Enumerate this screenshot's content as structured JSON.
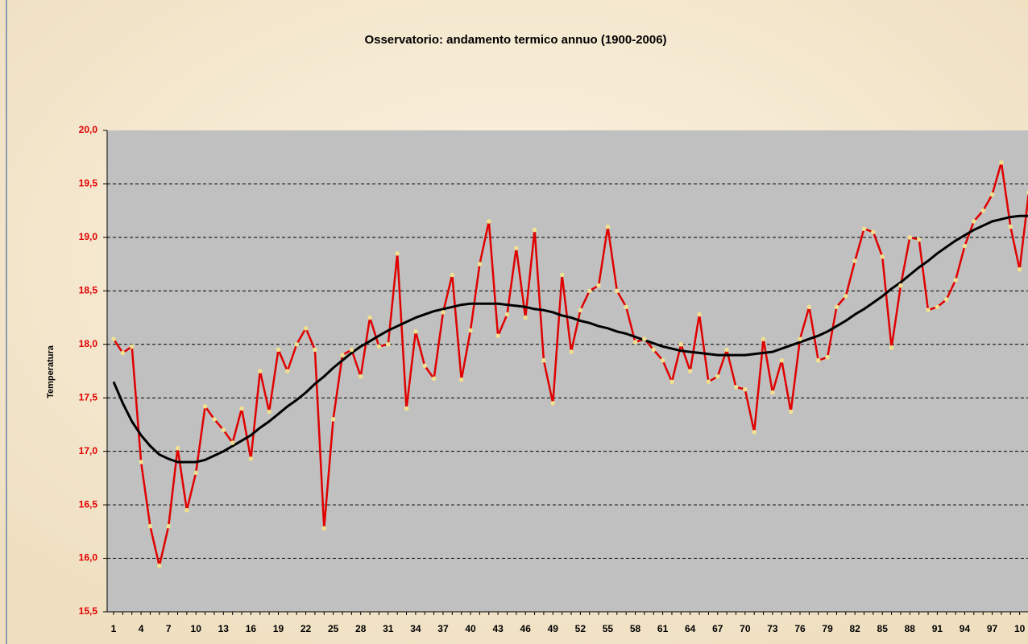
{
  "chart_data": {
    "type": "line",
    "title": "Osservatorio: andamento termico annuo (1900-2006)",
    "ylabel": "Temperatura",
    "categories": [
      "1",
      null,
      null,
      "4",
      null,
      null,
      "7",
      null,
      null,
      "10",
      null,
      null,
      "13",
      null,
      null,
      "16",
      null,
      null,
      "19",
      null,
      null,
      "22",
      null,
      null,
      "25",
      null,
      null,
      "28",
      null,
      null,
      "31",
      null,
      null,
      "34",
      null,
      null,
      "37",
      null,
      null,
      "40",
      null,
      null,
      "43",
      null,
      null,
      "46",
      null,
      null,
      "49",
      null,
      null,
      "52",
      null,
      null,
      "55",
      null,
      null,
      "58",
      null,
      null,
      "61",
      null,
      null,
      "64",
      null,
      null,
      "67",
      null,
      null,
      "70",
      null,
      null,
      "73",
      null,
      null,
      "76",
      null,
      null,
      "79",
      null,
      null,
      "82",
      null,
      null,
      "85",
      null,
      null,
      "88",
      null,
      null,
      "91",
      null,
      null,
      "94",
      null,
      null,
      "97",
      null,
      null,
      "10",
      null
    ],
    "series": [
      {
        "color": "#e00000",
        "marker_color": "#f0e090",
        "values": [
          18.05,
          17.92,
          17.98,
          16.9,
          16.3,
          15.93,
          16.3,
          17.03,
          16.45,
          16.8,
          17.42,
          17.3,
          17.2,
          17.08,
          17.4,
          16.93,
          17.75,
          17.37,
          17.95,
          17.75,
          18.0,
          18.15,
          17.95,
          16.28,
          17.3,
          17.9,
          17.95,
          17.7,
          18.25,
          17.98,
          18.0,
          18.85,
          17.4,
          18.12,
          17.8,
          17.68,
          18.3,
          18.65,
          17.67,
          18.13,
          18.75,
          19.15,
          18.08,
          18.28,
          18.9,
          18.25,
          19.07,
          17.85,
          17.45,
          18.65,
          17.93,
          18.32,
          18.5,
          18.55,
          19.1,
          18.5,
          18.35,
          18.02,
          18.05,
          17.95,
          17.85,
          17.65,
          18.0,
          17.75,
          18.28,
          17.65,
          17.7,
          17.95,
          17.6,
          17.58,
          17.18,
          18.05,
          17.55,
          17.85,
          17.37,
          18.05,
          18.35,
          17.85,
          17.88,
          18.35,
          18.45,
          18.78,
          19.08,
          19.05,
          18.82,
          17.97,
          18.55,
          19.0,
          18.98,
          18.32,
          18.35,
          18.42,
          18.6,
          18.92,
          19.15,
          19.25,
          19.4,
          19.7,
          19.1,
          18.7,
          19.42
        ]
      },
      {
        "color": "#000000",
        "values": [
          17.65,
          17.45,
          17.28,
          17.15,
          17.05,
          16.97,
          16.93,
          16.9,
          16.9,
          16.9,
          16.92,
          16.96,
          17.0,
          17.05,
          17.1,
          17.15,
          17.22,
          17.28,
          17.35,
          17.42,
          17.48,
          17.55,
          17.63,
          17.7,
          17.78,
          17.85,
          17.92,
          17.98,
          18.03,
          18.08,
          18.13,
          18.17,
          18.21,
          18.25,
          18.28,
          18.31,
          18.33,
          18.35,
          18.37,
          18.38,
          18.38,
          18.38,
          18.38,
          18.37,
          18.36,
          18.35,
          18.33,
          18.32,
          18.3,
          18.27,
          18.25,
          18.22,
          18.2,
          18.17,
          18.15,
          18.12,
          18.1,
          18.07,
          18.04,
          18.01,
          17.98,
          17.96,
          17.94,
          17.93,
          17.92,
          17.91,
          17.9,
          17.9,
          17.9,
          17.9,
          17.91,
          17.92,
          17.93,
          17.96,
          17.99,
          18.02,
          18.05,
          18.08,
          18.12,
          18.17,
          18.22,
          18.28,
          18.33,
          18.39,
          18.45,
          18.52,
          18.58,
          18.65,
          18.72,
          18.78,
          18.85,
          18.91,
          18.97,
          19.02,
          19.07,
          19.11,
          19.15,
          19.17,
          19.19,
          19.2,
          19.2
        ]
      }
    ],
    "ylim": [
      15.5,
      20
    ],
    "yticks": [
      {
        "value": 15.5,
        "label": "15,5"
      },
      {
        "value": 16,
        "label": "16,0"
      },
      {
        "value": 16.5,
        "label": "16,5"
      },
      {
        "value": 17,
        "label": "17,0"
      },
      {
        "value": 17.5,
        "label": "17,5"
      },
      {
        "value": 18,
        "label": "18,0"
      },
      {
        "value": 18.5,
        "label": "18,5"
      },
      {
        "value": 19,
        "label": "19,0"
      },
      {
        "value": 19.5,
        "label": "19,5"
      },
      {
        "value": 20,
        "label": "20,0"
      }
    ],
    "grid": true,
    "plot_color": "#c0c0c0",
    "ytick_color": "#e00000"
  }
}
